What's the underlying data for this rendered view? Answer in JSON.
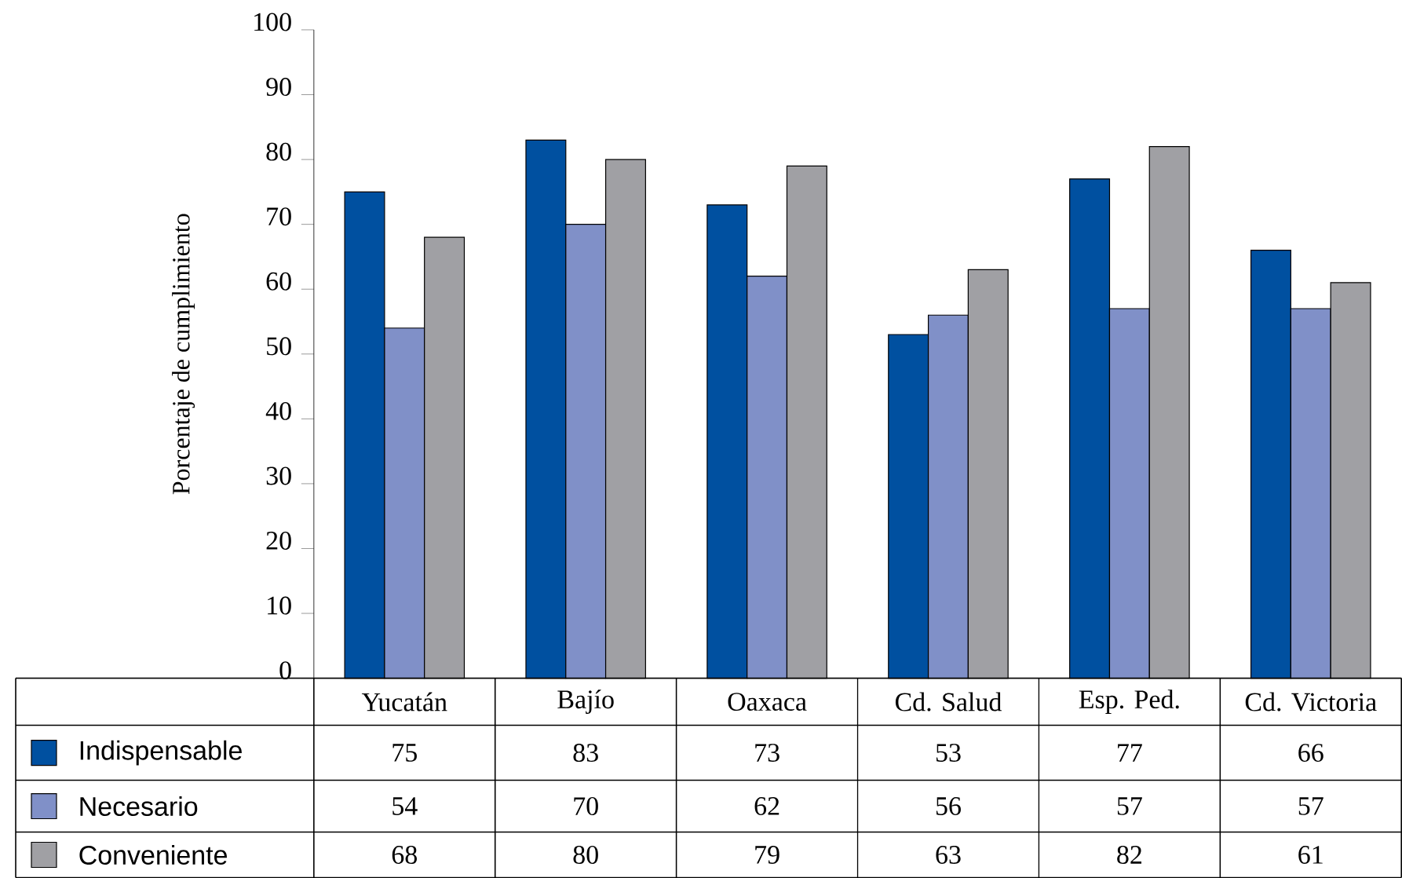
{
  "chart_data": {
    "type": "bar",
    "ylabel": "Porcentaje de cumplimiento",
    "categories": [
      "Yucatán",
      "Bajío",
      "Oaxaca",
      "Cd. Salud",
      "Esp. Ped.",
      "Cd. Victoria"
    ],
    "series": [
      {
        "name": "Indispensable",
        "color": "#0050a0",
        "values": [
          75,
          83,
          73,
          53,
          77,
          66
        ]
      },
      {
        "name": "Necesario",
        "color": "#8090c8",
        "values": [
          54,
          70,
          62,
          56,
          57,
          57
        ]
      },
      {
        "name": "Conveniente",
        "color": "#a0a0a4",
        "values": [
          68,
          80,
          79,
          63,
          82,
          61
        ]
      }
    ],
    "ylim": [
      0,
      100
    ],
    "yticks": [
      0,
      10,
      20,
      30,
      40,
      50,
      60,
      70,
      80,
      90,
      100
    ],
    "data_labels": true,
    "legend": "bottom",
    "grid": false
  }
}
